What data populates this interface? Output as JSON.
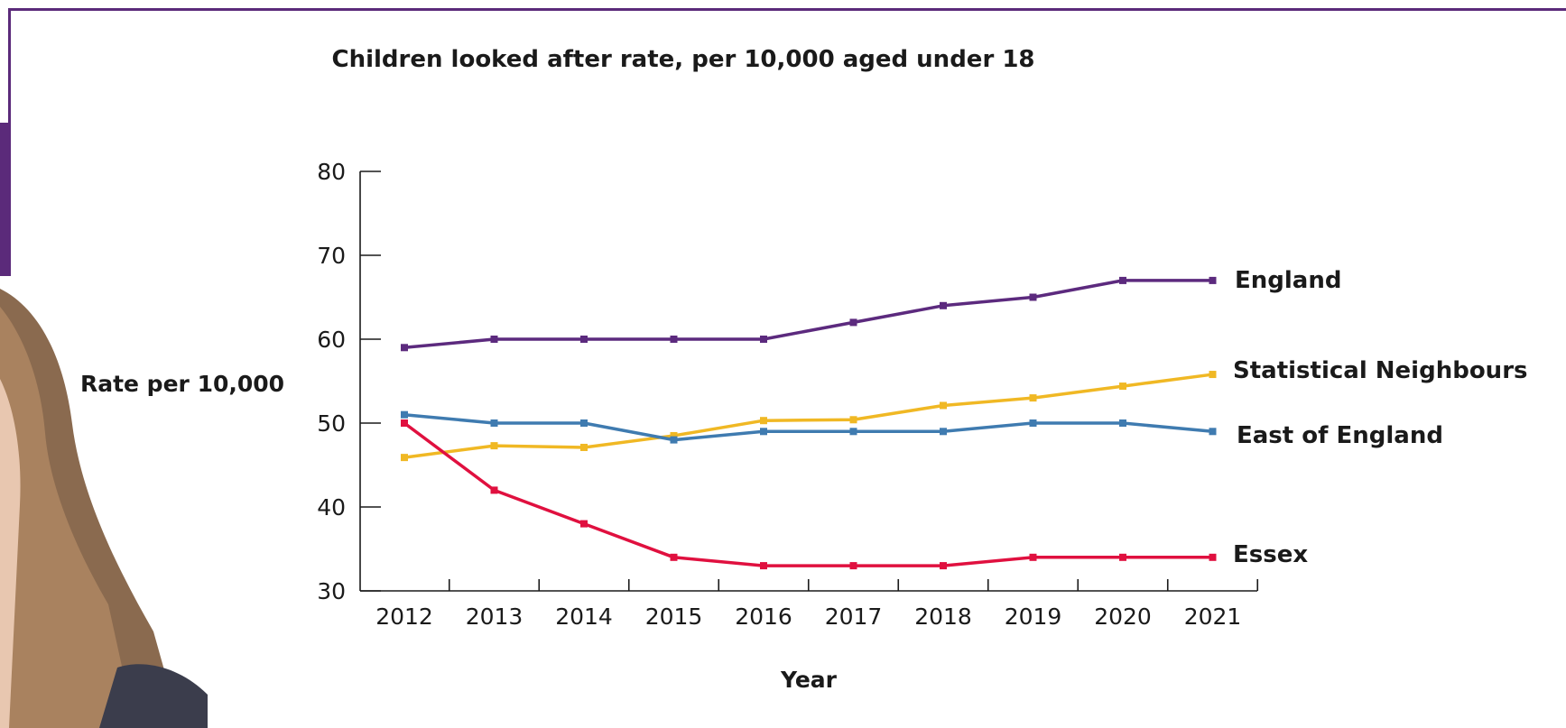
{
  "chart_data": {
    "type": "line",
    "title": "Children looked after rate, per 10,000 aged under 18",
    "xlabel": "Year",
    "ylabel": "Rate per 10,000",
    "x": [
      "2012",
      "2013",
      "2014",
      "2015",
      "2016",
      "2017",
      "2018",
      "2019",
      "2020",
      "2021"
    ],
    "y_ticks": [
      "30",
      "40",
      "50",
      "60",
      "70",
      "80"
    ],
    "ylim": [
      30,
      80
    ],
    "grid": false,
    "legend": "direct labels at line ends",
    "series": [
      {
        "name": "England",
        "color": "#5c2a7e",
        "values": [
          59,
          60,
          60,
          60,
          60,
          62,
          64,
          65,
          67,
          67
        ]
      },
      {
        "name": "Statistical Neighbours",
        "color": "#f0b824",
        "values": [
          45.9,
          47.3,
          47.1,
          48.5,
          50.3,
          50.4,
          52.1,
          53,
          54.4,
          55.8
        ]
      },
      {
        "name": "East of England",
        "color": "#3f7bb0",
        "values": [
          51,
          50,
          50,
          48,
          49,
          49,
          49,
          50,
          50,
          49
        ]
      },
      {
        "name": "Essex",
        "color": "#e0103f",
        "values": [
          50,
          42,
          38,
          34,
          33,
          33,
          33,
          34,
          34,
          34
        ]
      }
    ]
  }
}
